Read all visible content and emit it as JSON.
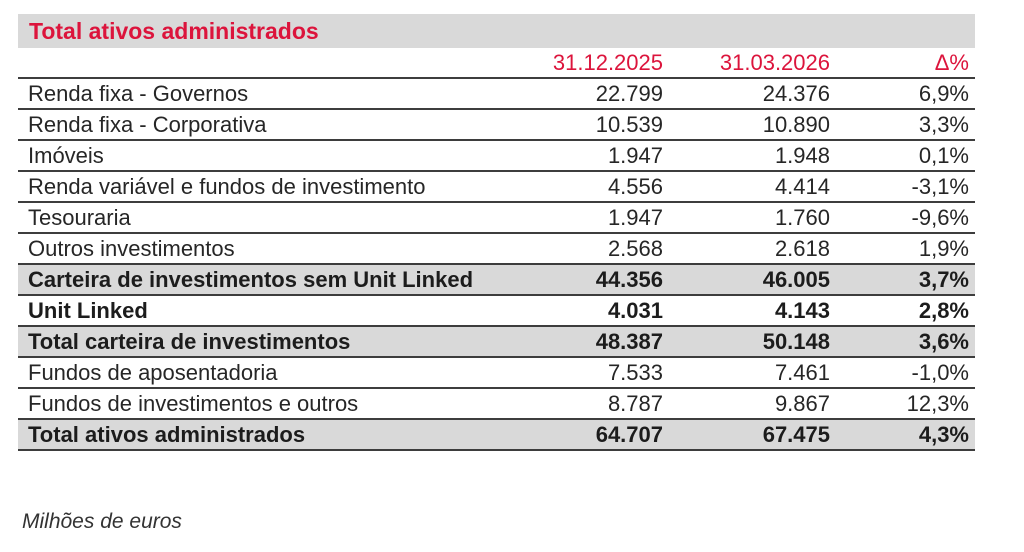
{
  "title": "Total ativos administrados",
  "footnote": "Milhões de euros",
  "header": {
    "col_date_1": "31.12.2025",
    "col_date_2": "31.03.2026",
    "col_delta": "Δ%"
  },
  "colors": {
    "accent_red": "#dc143c",
    "highlight_gray": "#d9d9d9",
    "border_dark": "#3d3d3d"
  },
  "chart_data": {
    "type": "table",
    "title": "Total ativos administrados",
    "unit_note": "Milhões de euros",
    "columns": [
      "",
      "31.12.2025",
      "31.03.2026",
      "Δ%"
    ],
    "rows": [
      {
        "label": "Renda fixa - Governos",
        "v1": "22.799",
        "v2": "24.376",
        "delta": "6,9%",
        "emphasis": false,
        "highlight": false
      },
      {
        "label": "Renda fixa - Corporativa",
        "v1": "10.539",
        "v2": "10.890",
        "delta": "3,3%",
        "emphasis": false,
        "highlight": false
      },
      {
        "label": "Imóveis",
        "v1": "1.947",
        "v2": "1.948",
        "delta": "0,1%",
        "emphasis": false,
        "highlight": false
      },
      {
        "label": "Renda variável e fundos de investimento",
        "v1": "4.556",
        "v2": "4.414",
        "delta": "-3,1%",
        "emphasis": false,
        "highlight": false
      },
      {
        "label": "Tesouraria",
        "v1": "1.947",
        "v2": "1.760",
        "delta": "-9,6%",
        "emphasis": false,
        "highlight": false
      },
      {
        "label": "Outros investimentos",
        "v1": "2.568",
        "v2": "2.618",
        "delta": "1,9%",
        "emphasis": false,
        "highlight": false
      },
      {
        "label": "Carteira de investimentos sem Unit Linked",
        "v1": "44.356",
        "v2": "46.005",
        "delta": "3,7%",
        "emphasis": true,
        "highlight": true
      },
      {
        "label": "Unit Linked",
        "v1": "4.031",
        "v2": "4.143",
        "delta": "2,8%",
        "emphasis": true,
        "highlight": false
      },
      {
        "label": "Total carteira de investimentos",
        "v1": "48.387",
        "v2": "50.148",
        "delta": "3,6%",
        "emphasis": true,
        "highlight": true
      },
      {
        "label": "Fundos de aposentadoria",
        "v1": "7.533",
        "v2": "7.461",
        "delta": "-1,0%",
        "emphasis": false,
        "highlight": false
      },
      {
        "label": "Fundos de investimentos e outros",
        "v1": "8.787",
        "v2": "9.867",
        "delta": "12,3%",
        "emphasis": false,
        "highlight": false
      },
      {
        "label": "Total ativos administrados",
        "v1": "64.707",
        "v2": "67.475",
        "delta": "4,3%",
        "emphasis": true,
        "highlight": true
      }
    ]
  }
}
